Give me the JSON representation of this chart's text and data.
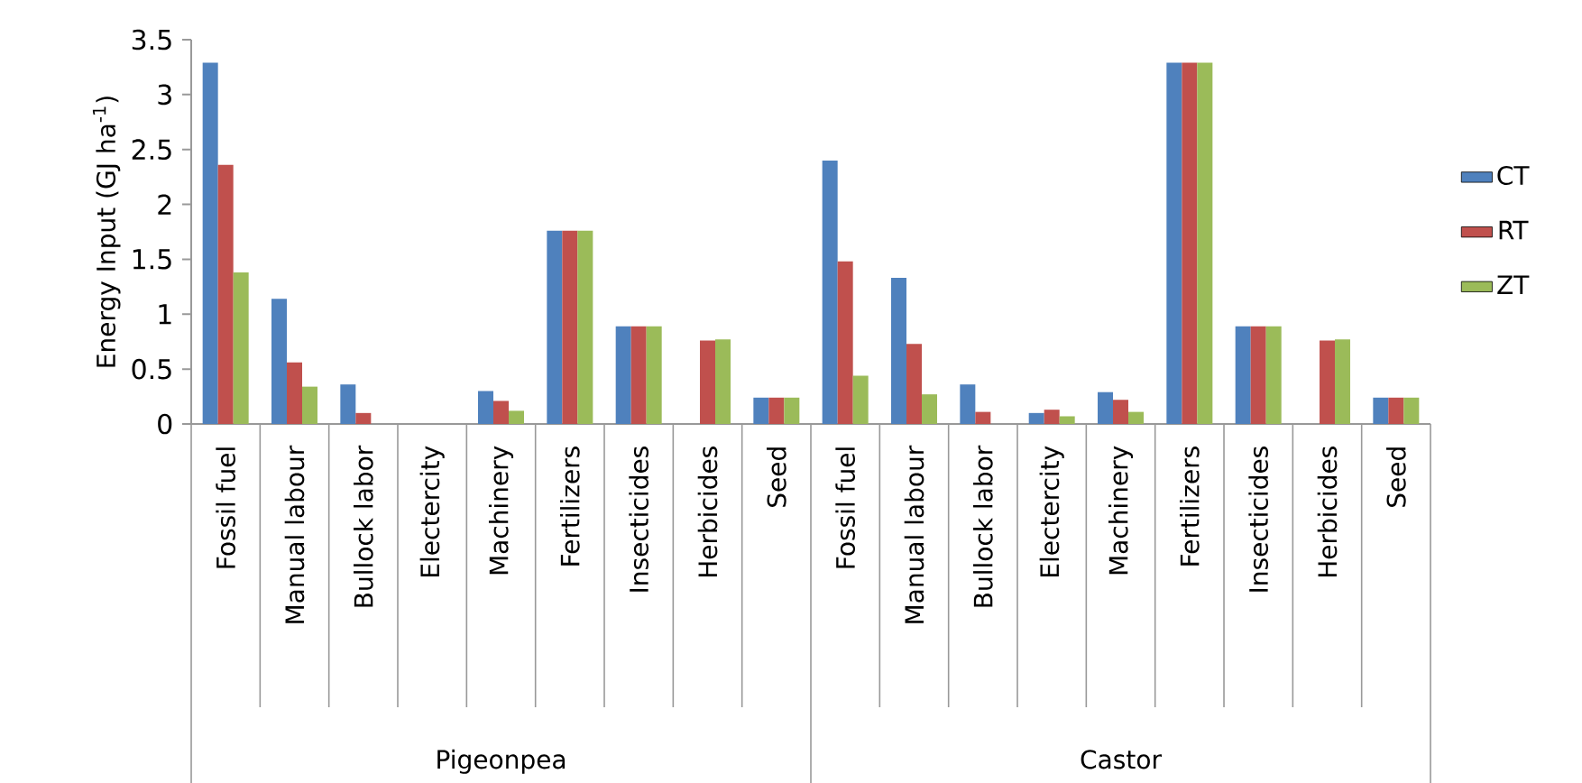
{
  "chart_data": {
    "type": "bar",
    "ylabel": "Energy Input (GJ ha$^{-1}$)",
    "categories": [
      "Fossil fuel",
      "Manual labour",
      "Bullock labor",
      "Electercity",
      "Machinery",
      "Fertilizers",
      "Insecticides",
      "Herbicides",
      "Seed",
      "Fossil fuel",
      "Manual labour",
      "Bullock labor",
      "Electercity",
      "Machinery",
      "Fertilizers",
      "Insecticides",
      "Herbicides",
      "Seed"
    ],
    "series": [
      {
        "name": "CT",
        "color": "#4f81bd",
        "values": [
          3.29,
          1.14,
          0.36,
          0,
          0.3,
          1.76,
          0.89,
          0,
          0.24,
          2.4,
          1.33,
          0.36,
          0.1,
          0.29,
          3.29,
          0.89,
          0,
          0.24
        ]
      },
      {
        "name": "RT",
        "color": "#c0504d",
        "values": [
          2.36,
          0.56,
          0.1,
          0,
          0.21,
          1.76,
          0.89,
          0.76,
          0.24,
          1.48,
          0.73,
          0.11,
          0.13,
          0.22,
          3.29,
          0.89,
          0.76,
          0.24
        ]
      },
      {
        "name": "ZT",
        "color": "#9bbb59",
        "values": [
          1.38,
          0.34,
          0,
          0,
          0.12,
          1.76,
          0.89,
          0.77,
          0.24,
          0.44,
          0.27,
          0,
          0.07,
          0.11,
          3.29,
          0.89,
          0.77,
          0.24
        ]
      }
    ],
    "annotations": [
      "Pigeonpea",
      "Castor"
    ],
    "ylim": [
      0,
      3.5
    ],
    "yticks": [
      0,
      0.5,
      1,
      1.5,
      2,
      2.5,
      3,
      3.5
    ],
    "grid": false,
    "legend": "right"
  }
}
